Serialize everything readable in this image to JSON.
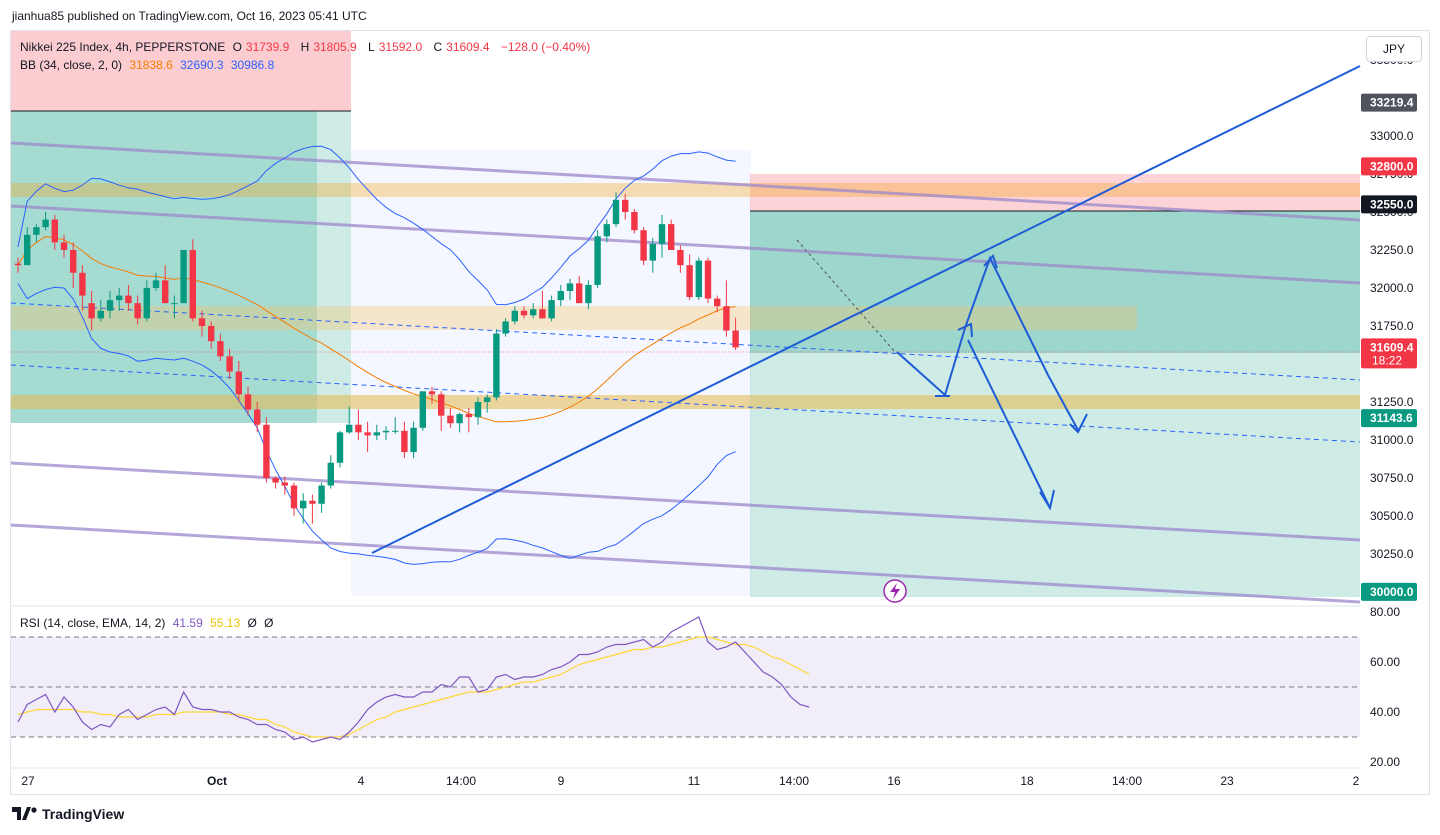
{
  "publisher": "jianhua85 published on TradingView.com, Oct 16, 2023 05:41 UTC",
  "currency": "JPY",
  "brand": "TradingView",
  "legend": {
    "symbol": "Nikkei 225 Index, 4h, PEPPERSTONE",
    "o_label": "O",
    "o": "31739.9",
    "h_label": "H",
    "h": "31805.9",
    "l_label": "L",
    "l": "31592.0",
    "c_label": "C",
    "c": "31609.4",
    "change": "−128.0 (−0.40%)",
    "bb_label": "BB (34, close, 2, 0)",
    "bb_basis": "31838.6",
    "bb_upper": "32690.3",
    "bb_lower": "30986.8"
  },
  "rsi_legend": {
    "label": "RSI (14, close, EMA, 14, 2)",
    "rsi": "41.59",
    "ma": "55.13",
    "a": "Ø",
    "b": "Ø"
  },
  "colors": {
    "up": "#089981",
    "down": "#f23645",
    "bb_band": "#2962ff",
    "bb_basis": "#f57c00",
    "rsi": "#7e57c2",
    "rsi_ma": "#fdd835",
    "channel": "#9c88cc",
    "trend": "#1e5cd6"
  },
  "chart_data": [
    {
      "type": "candlestick",
      "title": "Nikkei 225 Index, 4h, PEPPERSTONE",
      "x_tick_labels": [
        "27",
        "Oct",
        "4",
        "14:00",
        "9",
        "11",
        "14:00",
        "16",
        "18",
        "14:00",
        "23",
        "2"
      ],
      "y_tick_labels": [
        "33500.0",
        "33000.0",
        "32750.0",
        "32500.0",
        "32250.0",
        "32000.0",
        "31750.0",
        "31250.0",
        "31000.0",
        "30750.0",
        "30500.0",
        "30250.0"
      ],
      "ylim": [
        29960,
        33500
      ],
      "price_labels": [
        {
          "value": 33219.4,
          "text": "33219.4",
          "color": "#50535e"
        },
        {
          "value": 32800.0,
          "text": "32800.0",
          "color": "#f23645"
        },
        {
          "value": 32550.0,
          "text": "32550.0",
          "color": "#131722"
        },
        {
          "value": 31609.4,
          "text": "31609.4",
          "sub": "18:22",
          "color": "#f23645"
        },
        {
          "value": 31143.6,
          "text": "31143.6",
          "color": "#089981"
        },
        {
          "value": 30000.0,
          "text": "30000.0",
          "color": "#089981"
        }
      ],
      "candles": [
        [
          32160,
          32200,
          32100,
          32150
        ],
        [
          32150,
          32400,
          32150,
          32350
        ],
        [
          32350,
          32420,
          32300,
          32400
        ],
        [
          32400,
          32500,
          32380,
          32450
        ],
        [
          32450,
          32480,
          32250,
          32300
        ],
        [
          32300,
          32350,
          32200,
          32250
        ],
        [
          32250,
          32300,
          32000,
          32100
        ],
        [
          32100,
          32150,
          31850,
          31950
        ],
        [
          31900,
          31980,
          31720,
          31800
        ],
        [
          31800,
          31920,
          31780,
          31850
        ],
        [
          31850,
          31980,
          31800,
          31920
        ],
        [
          31920,
          32000,
          31850,
          31950
        ],
        [
          31950,
          32020,
          31850,
          31900
        ],
        [
          31900,
          31950,
          31760,
          31800
        ],
        [
          31800,
          32050,
          31780,
          32000
        ],
        [
          32000,
          32100,
          31980,
          32050
        ],
        [
          32050,
          32150,
          31900,
          31900
        ],
        [
          31900,
          31950,
          31800,
          31900
        ],
        [
          31900,
          32250,
          31900,
          32250
        ],
        [
          32250,
          32320,
          31780,
          31800
        ],
        [
          31800,
          31850,
          31680,
          31750
        ],
        [
          31750,
          31780,
          31600,
          31650
        ],
        [
          31650,
          31700,
          31520,
          31550
        ],
        [
          31550,
          31600,
          31400,
          31450
        ],
        [
          31450,
          31520,
          31250,
          31300
        ],
        [
          31300,
          31350,
          31160,
          31200
        ],
        [
          31200,
          31250,
          31050,
          31100
        ],
        [
          31100,
          31150,
          30720,
          30750
        ],
        [
          30750,
          30760,
          30680,
          30720
        ],
        [
          30720,
          30760,
          30640,
          30700
        ],
        [
          30700,
          30720,
          30500,
          30550
        ],
        [
          30550,
          30650,
          30450,
          30600
        ],
        [
          30600,
          30640,
          30450,
          30580
        ],
        [
          30580,
          30720,
          30520,
          30700
        ],
        [
          30700,
          30900,
          30680,
          30850
        ],
        [
          30850,
          31060,
          30820,
          31050
        ],
        [
          31050,
          31220,
          31040,
          31100
        ],
        [
          31100,
          31200,
          31000,
          31050
        ],
        [
          31050,
          31120,
          30920,
          31030
        ],
        [
          31030,
          31100,
          31000,
          31050
        ],
        [
          31050,
          31090,
          31000,
          31060
        ],
        [
          31060,
          31150,
          31040,
          31060
        ],
        [
          31060,
          31120,
          30880,
          30920
        ],
        [
          30920,
          31120,
          30880,
          31080
        ],
        [
          31080,
          31320,
          31060,
          31320
        ],
        [
          31320,
          31350,
          31240,
          31300
        ],
        [
          31300,
          31320,
          31060,
          31160
        ],
        [
          31160,
          31210,
          31080,
          31110
        ],
        [
          31110,
          31180,
          31050,
          31170
        ],
        [
          31170,
          31210,
          31050,
          31150
        ],
        [
          31150,
          31280,
          31100,
          31250
        ],
        [
          31250,
          31300,
          31180,
          31280
        ],
        [
          31280,
          31730,
          31260,
          31700
        ],
        [
          31700,
          31800,
          31680,
          31780
        ],
        [
          31780,
          31880,
          31760,
          31850
        ],
        [
          31850,
          31880,
          31800,
          31820
        ],
        [
          31820,
          31900,
          31800,
          31860
        ],
        [
          31860,
          31980,
          31800,
          31800
        ],
        [
          31800,
          31950,
          31780,
          31920
        ],
        [
          31920,
          32020,
          31880,
          31980
        ],
        [
          31980,
          32060,
          31920,
          32030
        ],
        [
          32030,
          32080,
          31900,
          31900
        ],
        [
          31900,
          32050,
          31860,
          32020
        ],
        [
          32020,
          32380,
          32000,
          32340
        ],
        [
          32340,
          32450,
          32300,
          32420
        ],
        [
          32420,
          32630,
          32400,
          32580
        ],
        [
          32580,
          32620,
          32450,
          32500
        ],
        [
          32500,
          32520,
          32360,
          32380
        ],
        [
          32380,
          32400,
          32150,
          32180
        ],
        [
          32180,
          32330,
          32100,
          32290
        ],
        [
          32290,
          32480,
          32200,
          32420
        ],
        [
          32420,
          32450,
          32250,
          32250
        ],
        [
          32250,
          32280,
          32100,
          32150
        ],
        [
          32150,
          32220,
          31920,
          31940
        ],
        [
          31940,
          32200,
          31920,
          32180
        ],
        [
          32180,
          32200,
          31900,
          31930
        ],
        [
          31930,
          31950,
          31840,
          31880
        ],
        [
          31880,
          32050,
          31680,
          31720
        ],
        [
          31720,
          31805,
          31592,
          31609
        ]
      ]
    },
    {
      "type": "line",
      "title": "RSI (14, close, EMA, 14, 2)",
      "y_tick_labels": [
        "80.00",
        "60.00",
        "40.00",
        "20.00"
      ],
      "ylim": [
        20,
        80
      ],
      "series": [
        {
          "name": "RSI",
          "values": [
            36,
            43,
            45,
            47,
            40,
            46,
            42,
            36,
            33,
            35,
            34,
            39,
            41,
            37,
            39,
            41,
            42,
            39,
            48,
            42,
            41,
            41,
            40,
            40,
            38,
            37,
            35,
            35,
            33,
            32,
            29,
            30,
            28,
            29,
            30,
            29,
            32,
            36,
            41,
            44,
            46,
            47,
            46,
            46,
            48,
            48,
            51,
            50,
            54,
            54,
            48,
            49,
            54,
            55,
            53,
            54,
            54,
            55,
            57,
            58,
            60,
            63,
            63,
            64,
            66,
            67,
            67,
            68,
            69,
            66,
            68,
            72,
            74,
            76,
            78,
            68,
            65,
            66,
            68,
            64,
            60,
            56,
            54,
            51,
            46,
            43,
            42
          ]
        },
        {
          "name": "RSI-based MA",
          "values": [
            39,
            40,
            41,
            41,
            41,
            41,
            41,
            40,
            40,
            39,
            39,
            38,
            38,
            38,
            38,
            39,
            39,
            39,
            40,
            40,
            40,
            40,
            40,
            39,
            39,
            38,
            37,
            37,
            35,
            34,
            32,
            31,
            30,
            30,
            30,
            30,
            31,
            33,
            35,
            37,
            38,
            40,
            41,
            42,
            43,
            44,
            45,
            46,
            47,
            48,
            48,
            48,
            49,
            50,
            51,
            52,
            52,
            53,
            54,
            55,
            57,
            59,
            60,
            61,
            62,
            63,
            64,
            65,
            65,
            66,
            66,
            67,
            68,
            69,
            70,
            70,
            69,
            68,
            67,
            67,
            66,
            64,
            62,
            61,
            59,
            57,
            55
          ]
        }
      ]
    }
  ]
}
